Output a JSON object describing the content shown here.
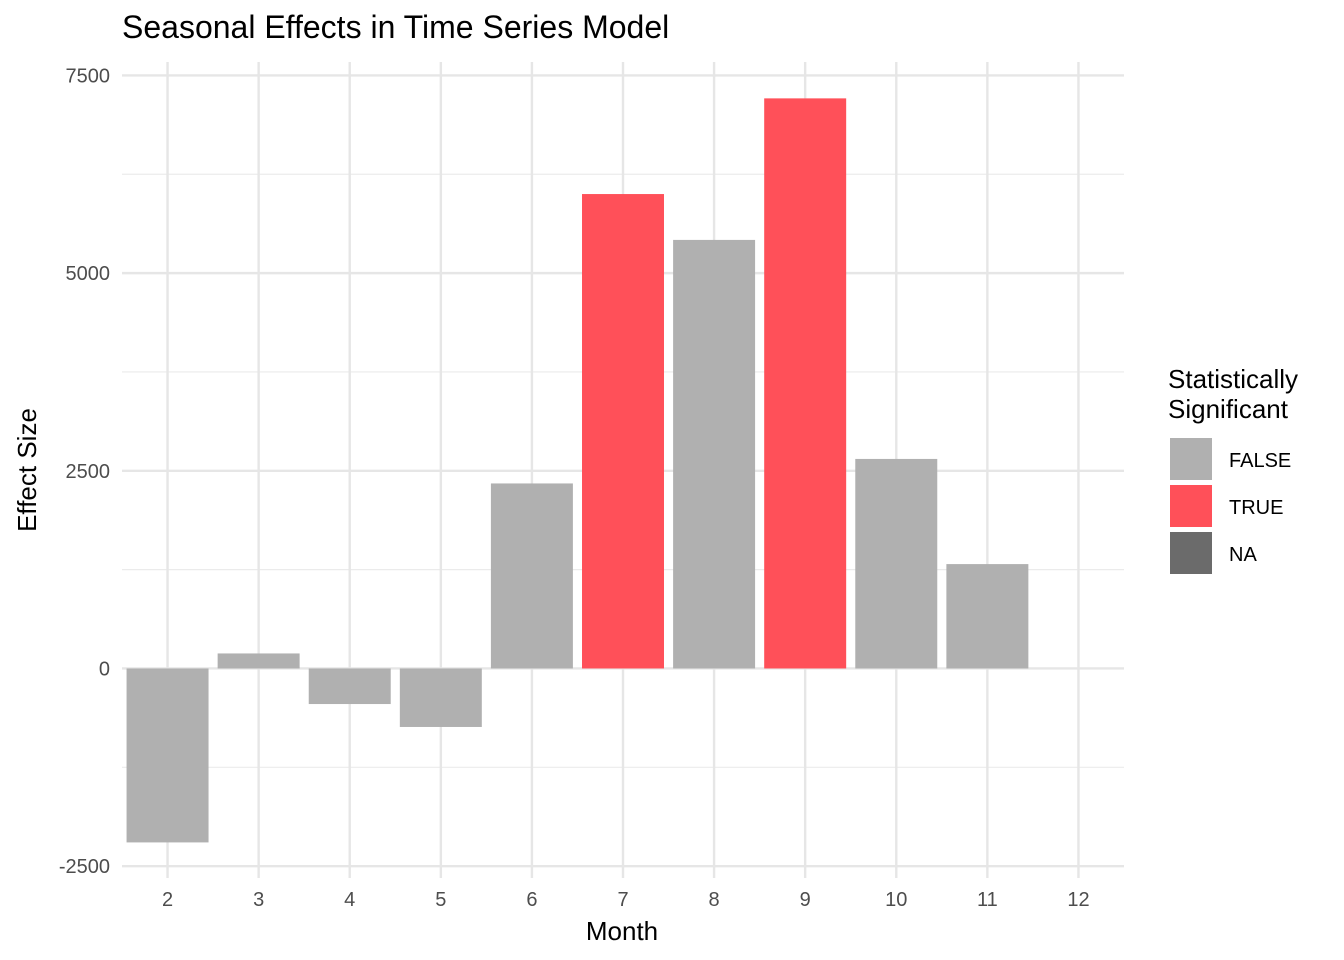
{
  "chart_data": {
    "type": "bar",
    "title": "Seasonal Effects in Time Series Model",
    "xlabel": "Month",
    "ylabel": "Effect Size",
    "categories": [
      "2",
      "3",
      "4",
      "5",
      "6",
      "7",
      "8",
      "9",
      "10",
      "11",
      "12"
    ],
    "values": [
      -2200,
      190,
      -450,
      -740,
      2340,
      6000,
      5420,
      7210,
      2650,
      1320,
      null
    ],
    "significant": [
      "FALSE",
      "FALSE",
      "FALSE",
      "FALSE",
      "FALSE",
      "TRUE",
      "FALSE",
      "TRUE",
      "FALSE",
      "FALSE",
      "NA"
    ],
    "ylim": [
      -2650,
      7670
    ],
    "y_ticks": [
      -2500,
      0,
      2500,
      5000,
      7500
    ],
    "y_tick_labels": [
      "-2500",
      "0",
      "2500",
      "5000",
      "7500"
    ],
    "grid": true,
    "legend": {
      "title_lines": [
        "Statistically",
        "Significant"
      ],
      "placement": "right",
      "entries": [
        {
          "key": "FALSE",
          "label": "FALSE",
          "color": "#b0b0b0"
        },
        {
          "key": "TRUE",
          "label": "TRUE",
          "color": "#ff5059"
        },
        {
          "key": "NA",
          "label": "NA",
          "color": "#6b6b6b"
        }
      ]
    }
  }
}
